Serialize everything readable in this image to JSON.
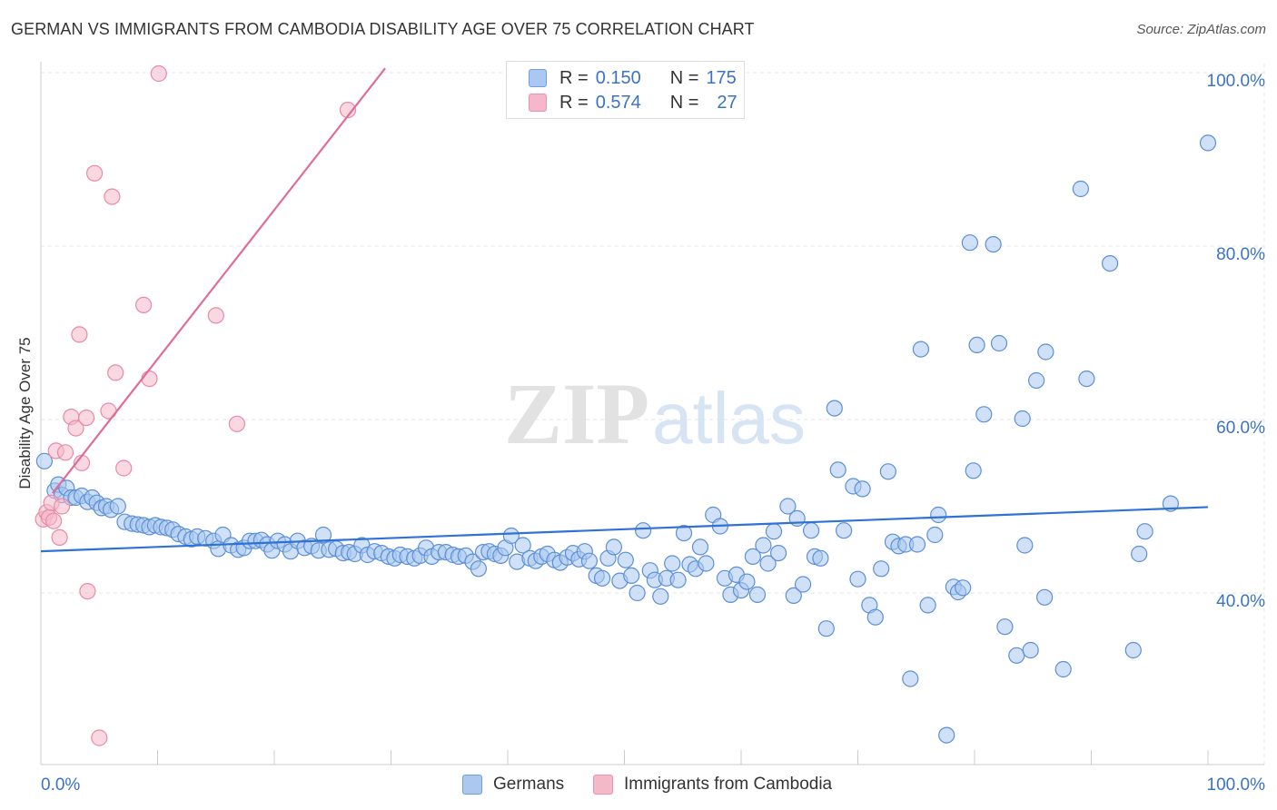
{
  "title": "GERMAN VS IMMIGRANTS FROM CAMBODIA DISABILITY AGE OVER 75 CORRELATION CHART",
  "source": "Source: ZipAtlas.com",
  "watermark": {
    "zip": "ZIP",
    "atlas": "atlas"
  },
  "legend_top": [
    {
      "r_label": "R =",
      "r_value": "0.150",
      "n_label": "N =",
      "n_value": "175",
      "color": "#aac8f0"
    },
    {
      "r_label": "R =",
      "r_value": "0.574",
      "n_label": "N =",
      "n_value": "27",
      "color": "#f5b8cb"
    }
  ],
  "legend_bottom": [
    {
      "label": "Germans",
      "color": "#aac8f0"
    },
    {
      "label": "Immigrants from Cambodia",
      "color": "#f5b8cb"
    }
  ],
  "chart_data": {
    "type": "scatter",
    "title": "GERMAN VS IMMIGRANTS FROM CAMBODIA DISABILITY AGE OVER 75 CORRELATION CHART",
    "xlabel": "",
    "ylabel": "Disability Age Over 75",
    "xlim": [
      0,
      100
    ],
    "ylim": [
      23,
      102
    ],
    "x_tick_labels": [
      "0.0%",
      "100.0%"
    ],
    "y_ticks": [
      40,
      60,
      80,
      100
    ],
    "y_tick_labels": [
      "40.0%",
      "60.0%",
      "80.0%",
      "100.0%"
    ],
    "grid": true,
    "legend_position": "top-center",
    "series": [
      {
        "name": "Germans",
        "color": "#5b8fd6",
        "fill": "#aac8f0",
        "trend": {
          "x": [
            0,
            100
          ],
          "y": [
            44.8,
            49.9
          ],
          "color": "#2f72d6"
        },
        "points": [
          [
            0.3,
            55.2
          ],
          [
            1.2,
            51.8
          ],
          [
            1.5,
            52.5
          ],
          [
            1.8,
            51.3
          ],
          [
            2.2,
            52.1
          ],
          [
            2.6,
            51.0
          ],
          [
            3.0,
            51.0
          ],
          [
            3.5,
            51.2
          ],
          [
            4.0,
            50.5
          ],
          [
            4.4,
            51.0
          ],
          [
            4.8,
            50.4
          ],
          [
            5.2,
            49.8
          ],
          [
            5.6,
            50.0
          ],
          [
            6.0,
            49.6
          ],
          [
            6.6,
            50.0
          ],
          [
            7.2,
            48.2
          ],
          [
            7.8,
            48.0
          ],
          [
            8.3,
            47.9
          ],
          [
            8.8,
            47.8
          ],
          [
            9.3,
            47.6
          ],
          [
            9.8,
            47.8
          ],
          [
            10.3,
            47.6
          ],
          [
            10.8,
            47.5
          ],
          [
            11.3,
            47.3
          ],
          [
            11.8,
            46.8
          ],
          [
            12.4,
            46.5
          ],
          [
            12.9,
            46.2
          ],
          [
            13.4,
            46.5
          ],
          [
            14.1,
            46.3
          ],
          [
            14.8,
            46.0
          ],
          [
            15.2,
            45.1
          ],
          [
            15.6,
            46.7
          ],
          [
            16.3,
            45.5
          ],
          [
            16.9,
            45.0
          ],
          [
            17.4,
            45.2
          ],
          [
            17.9,
            46.0
          ],
          [
            18.4,
            46.0
          ],
          [
            18.9,
            46.1
          ],
          [
            19.4,
            45.6
          ],
          [
            19.8,
            44.9
          ],
          [
            20.3,
            46.0
          ],
          [
            20.9,
            45.6
          ],
          [
            21.4,
            44.8
          ],
          [
            22.0,
            46.0
          ],
          [
            22.6,
            45.2
          ],
          [
            23.2,
            45.4
          ],
          [
            23.8,
            44.9
          ],
          [
            24.2,
            46.7
          ],
          [
            24.7,
            45.0
          ],
          [
            25.3,
            45.1
          ],
          [
            25.9,
            44.6
          ],
          [
            26.4,
            44.7
          ],
          [
            26.9,
            44.5
          ],
          [
            27.5,
            45.5
          ],
          [
            28.0,
            44.4
          ],
          [
            28.6,
            44.8
          ],
          [
            29.2,
            44.6
          ],
          [
            29.8,
            44.2
          ],
          [
            30.3,
            44.0
          ],
          [
            30.8,
            44.4
          ],
          [
            31.4,
            44.2
          ],
          [
            32.0,
            44.0
          ],
          [
            32.5,
            44.3
          ],
          [
            33.0,
            45.2
          ],
          [
            33.5,
            44.2
          ],
          [
            34.1,
            44.7
          ],
          [
            34.7,
            44.7
          ],
          [
            35.3,
            44.4
          ],
          [
            35.8,
            44.2
          ],
          [
            36.4,
            44.3
          ],
          [
            37.0,
            43.6
          ],
          [
            37.5,
            42.8
          ],
          [
            37.9,
            44.7
          ],
          [
            38.4,
            44.8
          ],
          [
            38.9,
            44.5
          ],
          [
            39.4,
            44.3
          ],
          [
            39.8,
            45.2
          ],
          [
            40.3,
            46.6
          ],
          [
            40.8,
            43.6
          ],
          [
            41.3,
            45.5
          ],
          [
            41.9,
            44.0
          ],
          [
            42.4,
            43.7
          ],
          [
            42.9,
            44.2
          ],
          [
            43.4,
            44.5
          ],
          [
            44.0,
            43.8
          ],
          [
            44.5,
            43.5
          ],
          [
            45.1,
            44.1
          ],
          [
            45.6,
            44.6
          ],
          [
            46.1,
            43.9
          ],
          [
            46.6,
            44.8
          ],
          [
            47.0,
            43.7
          ],
          [
            47.6,
            42.0
          ],
          [
            48.1,
            41.7
          ],
          [
            48.6,
            44.0
          ],
          [
            49.1,
            45.3
          ],
          [
            49.6,
            41.4
          ],
          [
            50.1,
            43.8
          ],
          [
            50.6,
            42.0
          ],
          [
            51.1,
            40.0
          ],
          [
            51.6,
            47.2
          ],
          [
            52.2,
            42.6
          ],
          [
            52.6,
            41.5
          ],
          [
            53.1,
            39.6
          ],
          [
            53.6,
            41.7
          ],
          [
            54.1,
            43.4
          ],
          [
            54.6,
            41.5
          ],
          [
            55.1,
            46.9
          ],
          [
            55.6,
            43.3
          ],
          [
            56.1,
            42.8
          ],
          [
            56.5,
            45.3
          ],
          [
            57.0,
            43.4
          ],
          [
            57.6,
            49.0
          ],
          [
            58.2,
            47.7
          ],
          [
            58.6,
            41.7
          ],
          [
            59.1,
            39.8
          ],
          [
            59.6,
            42.1
          ],
          [
            60.0,
            40.3
          ],
          [
            60.5,
            41.3
          ],
          [
            61.0,
            44.2
          ],
          [
            61.4,
            39.8
          ],
          [
            61.9,
            45.5
          ],
          [
            62.3,
            43.4
          ],
          [
            62.8,
            47.1
          ],
          [
            63.2,
            44.6
          ],
          [
            64.0,
            50.0
          ],
          [
            64.5,
            39.7
          ],
          [
            64.8,
            48.6
          ],
          [
            65.3,
            41.0
          ],
          [
            66.0,
            47.2
          ],
          [
            66.3,
            44.2
          ],
          [
            66.8,
            44.0
          ],
          [
            67.3,
            35.9
          ],
          [
            68.0,
            61.3
          ],
          [
            68.3,
            54.2
          ],
          [
            68.8,
            47.2
          ],
          [
            69.6,
            52.3
          ],
          [
            70.0,
            41.6
          ],
          [
            70.4,
            52.0
          ],
          [
            71.0,
            38.6
          ],
          [
            71.5,
            37.2
          ],
          [
            72.0,
            42.8
          ],
          [
            72.6,
            54.0
          ],
          [
            73.0,
            45.9
          ],
          [
            73.5,
            45.4
          ],
          [
            74.1,
            45.6
          ],
          [
            74.5,
            30.1
          ],
          [
            75.1,
            45.6
          ],
          [
            75.4,
            68.1
          ],
          [
            76.0,
            38.6
          ],
          [
            76.6,
            46.7
          ],
          [
            76.9,
            49.0
          ],
          [
            77.6,
            23.6
          ],
          [
            78.2,
            40.7
          ],
          [
            78.6,
            40.1
          ],
          [
            79.0,
            40.6
          ],
          [
            79.6,
            80.4
          ],
          [
            79.9,
            54.1
          ],
          [
            80.2,
            68.6
          ],
          [
            80.8,
            60.6
          ],
          [
            81.6,
            80.2
          ],
          [
            82.1,
            68.8
          ],
          [
            82.6,
            36.1
          ],
          [
            83.6,
            32.8
          ],
          [
            84.1,
            60.1
          ],
          [
            84.3,
            45.5
          ],
          [
            84.8,
            33.4
          ],
          [
            85.3,
            64.5
          ],
          [
            86.0,
            39.5
          ],
          [
            86.1,
            67.8
          ],
          [
            87.6,
            31.2
          ],
          [
            89.1,
            86.6
          ],
          [
            89.6,
            64.7
          ],
          [
            91.6,
            78.0
          ],
          [
            93.6,
            33.4
          ],
          [
            94.1,
            44.5
          ],
          [
            94.6,
            47.1
          ],
          [
            96.8,
            50.3
          ],
          [
            100.0,
            91.9
          ]
        ]
      },
      {
        "name": "Immigrants from Cambodia",
        "color": "#e88aa8",
        "fill": "#f5b8cb",
        "trend": {
          "x": [
            1.0,
            29.5
          ],
          "y": [
            51.5,
            100.5
          ],
          "color": "#e06d95"
        },
        "points": [
          [
            0.2,
            48.5
          ],
          [
            0.5,
            49.3
          ],
          [
            0.7,
            48.7
          ],
          [
            0.9,
            50.4
          ],
          [
            1.1,
            48.3
          ],
          [
            1.3,
            56.4
          ],
          [
            1.6,
            46.4
          ],
          [
            1.8,
            50.0
          ],
          [
            2.1,
            56.2
          ],
          [
            2.6,
            60.3
          ],
          [
            3.0,
            59.0
          ],
          [
            3.3,
            69.8
          ],
          [
            3.5,
            55.0
          ],
          [
            3.9,
            60.2
          ],
          [
            4.0,
            40.2
          ],
          [
            4.6,
            88.4
          ],
          [
            5.0,
            23.3
          ],
          [
            5.8,
            61.0
          ],
          [
            6.1,
            85.7
          ],
          [
            6.4,
            65.4
          ],
          [
            7.1,
            54.4
          ],
          [
            8.8,
            73.2
          ],
          [
            9.3,
            64.7
          ],
          [
            10.1,
            99.9
          ],
          [
            15.0,
            72.0
          ],
          [
            16.8,
            59.5
          ],
          [
            26.3,
            95.7
          ]
        ]
      }
    ]
  }
}
